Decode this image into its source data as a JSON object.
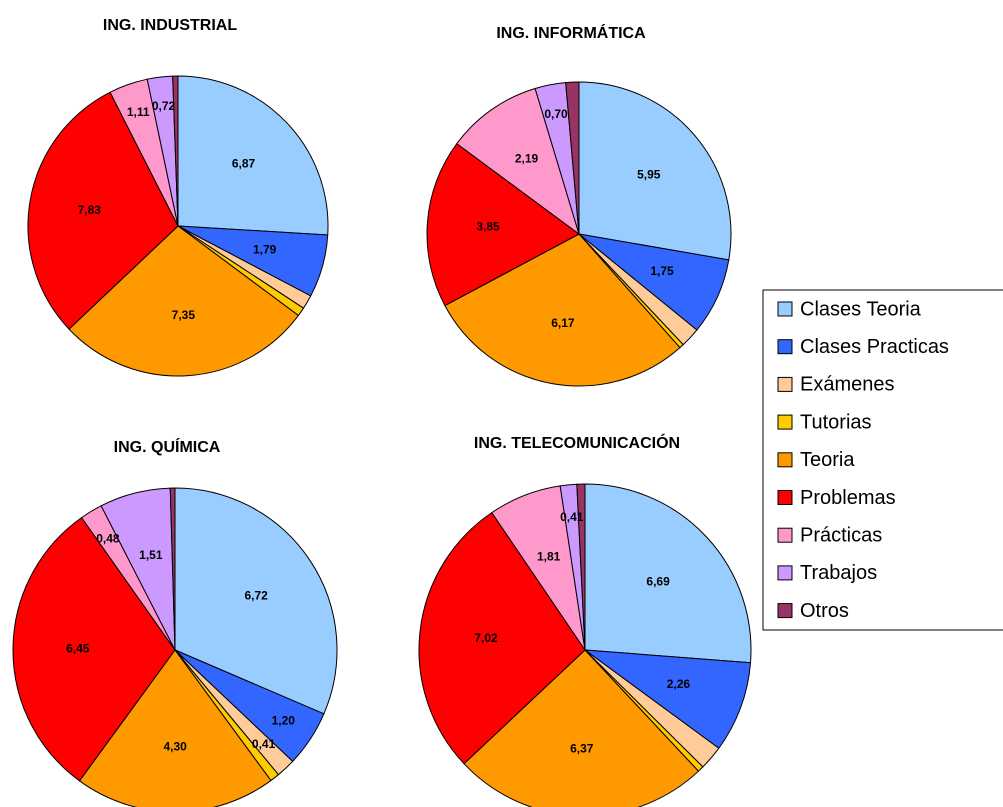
{
  "chart_data": [
    {
      "type": "pie",
      "title": "ING. INDUSTRIAL",
      "categories": [
        "Clases Teoria",
        "Clases Practicas",
        "Exámenes",
        "Tutorias",
        "Teoria",
        "Problemas",
        "Prácticas",
        "Trabajos",
        "Otros"
      ],
      "values": [
        6.87,
        1.79,
        0.4,
        0.25,
        7.35,
        7.83,
        1.11,
        0.72,
        0.15
      ],
      "value_labels": [
        "6,87",
        "1,79",
        null,
        null,
        "7,35",
        "7,83",
        "1,11",
        "0,72",
        null
      ],
      "colors": [
        "#99ccff",
        "#3366ff",
        "#ffcc99",
        "#ffcc00",
        "#ff9900",
        "#ff0000",
        "#ff99cc",
        "#cc99ff",
        "#993366"
      ]
    },
    {
      "type": "pie",
      "title": "ING. INFORMÁTICA",
      "categories": [
        "Clases Teoria",
        "Clases Practicas",
        "Exámenes",
        "Tutorias",
        "Teoria",
        "Problemas",
        "Prácticas",
        "Trabajos",
        "Otros"
      ],
      "values": [
        5.95,
        1.75,
        0.45,
        0.1,
        6.17,
        3.85,
        2.19,
        0.7,
        0.3
      ],
      "value_labels": [
        "5,95",
        "1,75",
        null,
        null,
        "6,17",
        "3,85",
        "2,19",
        "0,70",
        null
      ],
      "colors": [
        "#99ccff",
        "#3366ff",
        "#ffcc99",
        "#ffcc00",
        "#ff9900",
        "#ff0000",
        "#ff99cc",
        "#cc99ff",
        "#993366"
      ]
    },
    {
      "type": "pie",
      "title": "ING. QUÍMICA",
      "categories": [
        "Clases Teoria",
        "Clases Practicas",
        "Exámenes",
        "Tutorias",
        "Teoria",
        "Problemas",
        "Prácticas",
        "Trabajos",
        "Otros"
      ],
      "values": [
        6.72,
        1.2,
        0.41,
        0.2,
        4.3,
        6.45,
        0.48,
        1.51,
        0.1
      ],
      "value_labels": [
        "6,72",
        "1,20",
        "0,41",
        null,
        "4,30",
        "6,45",
        "0,48",
        "1,51",
        null
      ],
      "colors": [
        "#99ccff",
        "#3366ff",
        "#ffcc99",
        "#ffcc00",
        "#ff9900",
        "#ff0000",
        "#ff99cc",
        "#cc99ff",
        "#993366"
      ]
    },
    {
      "type": "pie",
      "title": "ING. TELECOMUNICACIÓN",
      "categories": [
        "Clases Teoria",
        "Clases Practicas",
        "Exámenes",
        "Tutorias",
        "Teoria",
        "Problemas",
        "Prácticas",
        "Trabajos",
        "Otros"
      ],
      "values": [
        6.69,
        2.26,
        0.6,
        0.15,
        6.37,
        7.02,
        1.81,
        0.41,
        0.2
      ],
      "value_labels": [
        "6,69",
        "2,26",
        null,
        null,
        "6,37",
        "7,02",
        "1,81",
        "0,41",
        null
      ],
      "colors": [
        "#99ccff",
        "#3366ff",
        "#ffcc99",
        "#ffcc00",
        "#ff9900",
        "#ff0000",
        "#ff99cc",
        "#cc99ff",
        "#993366"
      ]
    }
  ]
}
